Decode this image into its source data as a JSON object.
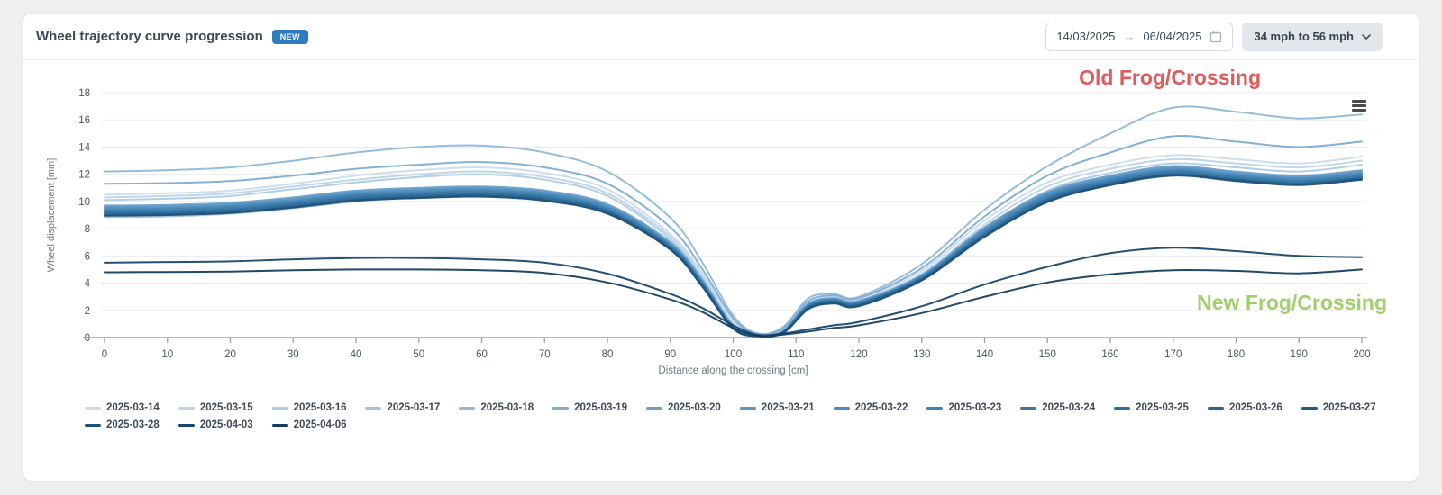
{
  "header": {
    "title": "Wheel trajectory curve progression",
    "badge": "NEW",
    "badge_color": "#2d7dbe",
    "date_range": {
      "start": "14/03/2025",
      "arrow": "→",
      "end": "06/04/2025"
    },
    "speed_filter": "34 mph to 56 mph"
  },
  "chart_data": {
    "type": "line",
    "title": "",
    "xlabel": "Distance along the crossing [cm]",
    "ylabel": "Wheel displacement [mm]",
    "xlim": [
      0,
      200
    ],
    "ylim": [
      0,
      18
    ],
    "x_ticks": [
      0,
      10,
      20,
      30,
      40,
      50,
      60,
      70,
      80,
      90,
      100,
      110,
      120,
      130,
      140,
      150,
      160,
      170,
      180,
      190,
      200
    ],
    "y_ticks": [
      0,
      2,
      4,
      6,
      8,
      10,
      12,
      14,
      16,
      18
    ],
    "grid": "horizontal",
    "legend_position": "bottom",
    "x": [
      0,
      10,
      20,
      30,
      40,
      50,
      60,
      70,
      80,
      90,
      95,
      100,
      104,
      108,
      112,
      116,
      120,
      130,
      140,
      150,
      160,
      170,
      180,
      190,
      200
    ],
    "series": [
      {
        "name": "2025-03-14",
        "color": "#cadcee",
        "values": [
          10.5,
          10.6,
          10.8,
          11.3,
          11.9,
          12.3,
          12.5,
          12.1,
          10.9,
          7.6,
          4.8,
          1.2,
          0.2,
          0.6,
          2.6,
          3.0,
          2.8,
          4.9,
          8.6,
          11.4,
          12.7,
          13.4,
          13.1,
          12.8,
          13.3
        ]
      },
      {
        "name": "2025-03-15",
        "color": "#bcd4e9",
        "values": [
          10.3,
          10.4,
          10.6,
          11.1,
          11.6,
          12.0,
          12.2,
          11.8,
          10.6,
          7.4,
          4.6,
          1.0,
          0.15,
          0.5,
          2.5,
          2.9,
          2.7,
          4.7,
          8.3,
          11.1,
          12.4,
          13.1,
          12.8,
          12.5,
          13.0
        ]
      },
      {
        "name": "2025-03-16",
        "color": "#aecbe4",
        "values": [
          10.1,
          10.2,
          10.4,
          10.9,
          11.4,
          11.8,
          12.0,
          11.6,
          10.4,
          7.2,
          4.4,
          0.9,
          0.1,
          0.45,
          2.4,
          2.8,
          2.6,
          4.5,
          8.0,
          10.8,
          12.1,
          12.8,
          12.5,
          12.2,
          12.7
        ]
      },
      {
        "name": "2025-03-17",
        "color": "#a0c3df",
        "values": [
          8.85,
          8.9,
          9.1,
          9.5,
          10.0,
          10.3,
          10.5,
          10.2,
          9.2,
          6.6,
          4.0,
          0.8,
          0.1,
          0.4,
          2.2,
          2.6,
          2.4,
          4.2,
          7.5,
          10.0,
          11.2,
          11.9,
          11.6,
          11.3,
          11.8
        ]
      },
      {
        "name": "2025-03-18",
        "color": "#8fb8d9",
        "values": [
          12.2,
          12.3,
          12.5,
          13.0,
          13.6,
          14.0,
          14.1,
          13.6,
          12.2,
          8.8,
          5.6,
          1.6,
          0.3,
          0.8,
          2.9,
          3.2,
          3.0,
          5.4,
          9.4,
          12.6,
          15.0,
          16.9,
          16.6,
          16.1,
          16.4
        ]
      },
      {
        "name": "2025-03-19",
        "color": "#7dadd3",
        "values": [
          11.3,
          11.35,
          11.5,
          11.9,
          12.4,
          12.7,
          12.9,
          12.5,
          11.3,
          8.1,
          5.1,
          1.4,
          0.25,
          0.7,
          2.7,
          3.1,
          2.9,
          5.1,
          8.9,
          11.9,
          13.6,
          14.8,
          14.4,
          14.0,
          14.4
        ]
      },
      {
        "name": "2025-03-20",
        "color": "#6ba2cc",
        "values": [
          9.7,
          9.75,
          9.9,
          10.3,
          10.8,
          11.0,
          11.1,
          10.8,
          9.8,
          7.0,
          4.3,
          0.9,
          0.12,
          0.5,
          2.5,
          2.9,
          2.7,
          4.6,
          8.1,
          10.7,
          11.9,
          12.6,
          12.2,
          11.9,
          12.3
        ]
      },
      {
        "name": "2025-03-21",
        "color": "#5b97c5",
        "values": [
          9.6,
          9.65,
          9.8,
          10.2,
          10.7,
          10.9,
          11.0,
          10.7,
          9.7,
          6.9,
          4.2,
          0.85,
          0.1,
          0.48,
          2.45,
          2.85,
          2.65,
          4.55,
          8.0,
          10.6,
          11.8,
          12.5,
          12.1,
          11.8,
          12.2
        ]
      },
      {
        "name": "2025-03-22",
        "color": "#4d8cbd",
        "values": [
          9.5,
          9.55,
          9.7,
          10.1,
          10.6,
          10.8,
          10.9,
          10.6,
          9.6,
          6.8,
          4.1,
          0.8,
          0.1,
          0.45,
          2.4,
          2.8,
          2.6,
          4.5,
          7.9,
          10.5,
          11.7,
          12.4,
          12.0,
          11.7,
          12.1
        ]
      },
      {
        "name": "2025-03-23",
        "color": "#4182b3",
        "values": [
          9.4,
          9.45,
          9.6,
          10.0,
          10.5,
          10.7,
          10.8,
          10.5,
          9.5,
          6.75,
          4.05,
          0.78,
          0.1,
          0.44,
          2.35,
          2.75,
          2.55,
          4.45,
          7.8,
          10.4,
          11.6,
          12.3,
          11.9,
          11.6,
          12.0
        ]
      },
      {
        "name": "2025-03-24",
        "color": "#3778a8",
        "values": [
          9.3,
          9.35,
          9.5,
          9.9,
          10.4,
          10.6,
          10.7,
          10.4,
          9.4,
          6.7,
          4.0,
          0.75,
          0.1,
          0.42,
          2.3,
          2.7,
          2.5,
          4.4,
          7.7,
          10.3,
          11.5,
          12.2,
          11.8,
          11.5,
          11.9
        ]
      },
      {
        "name": "2025-03-25",
        "color": "#2f6e9d",
        "values": [
          9.2,
          9.25,
          9.4,
          9.8,
          10.3,
          10.5,
          10.6,
          10.3,
          9.3,
          6.6,
          3.95,
          0.72,
          0.1,
          0.4,
          2.25,
          2.65,
          2.45,
          4.35,
          7.6,
          10.2,
          11.4,
          12.1,
          11.7,
          11.4,
          11.8
        ]
      },
      {
        "name": "2025-03-26",
        "color": "#286492",
        "values": [
          9.1,
          9.15,
          9.3,
          9.7,
          10.2,
          10.4,
          10.5,
          10.2,
          9.25,
          6.55,
          3.9,
          0.7,
          0.1,
          0.38,
          2.2,
          2.6,
          2.4,
          4.3,
          7.5,
          10.1,
          11.3,
          12.0,
          11.6,
          11.3,
          11.7
        ]
      },
      {
        "name": "2025-03-27",
        "color": "#225a86",
        "values": [
          9.0,
          9.05,
          9.2,
          9.6,
          10.1,
          10.3,
          10.4,
          10.1,
          9.15,
          6.5,
          3.85,
          0.68,
          0.1,
          0.36,
          2.15,
          2.55,
          2.35,
          4.25,
          7.45,
          10.0,
          11.25,
          11.95,
          11.55,
          11.25,
          11.65
        ]
      },
      {
        "name": "2025-03-28",
        "color": "#1d517a",
        "values": [
          8.95,
          9.0,
          9.15,
          9.55,
          10.05,
          10.25,
          10.35,
          10.05,
          9.1,
          6.45,
          3.8,
          0.65,
          0.1,
          0.35,
          2.1,
          2.5,
          2.3,
          4.2,
          7.4,
          9.95,
          11.2,
          11.9,
          11.5,
          11.2,
          11.6
        ]
      },
      {
        "name": "2025-04-03",
        "color": "#18476d",
        "values": [
          5.5,
          5.55,
          5.6,
          5.75,
          5.85,
          5.85,
          5.75,
          5.5,
          4.7,
          3.2,
          2.2,
          0.9,
          0.2,
          0.3,
          0.6,
          0.9,
          1.15,
          2.3,
          3.9,
          5.2,
          6.2,
          6.6,
          6.35,
          6.0,
          5.9
        ]
      },
      {
        "name": "2025-04-06",
        "color": "#143e60",
        "values": [
          4.8,
          4.82,
          4.85,
          4.95,
          5.0,
          5.0,
          4.95,
          4.75,
          4.05,
          2.8,
          1.9,
          0.7,
          0.12,
          0.22,
          0.45,
          0.7,
          0.9,
          1.8,
          3.0,
          4.05,
          4.65,
          4.95,
          4.9,
          4.72,
          5.0
        ]
      }
    ],
    "annotations": [
      {
        "text": "Old Frog/Crossing",
        "color": "#e05c5c",
        "position": "top-right"
      },
      {
        "text": "New Frog/Crossing",
        "color": "#a4ce6e",
        "position": "bottom-right"
      }
    ],
    "style": {
      "grid_color": "#e9ecef",
      "axis_color": "#99a1a9",
      "tick_label_color": "#4c565f",
      "axis_title_color": "#707a84",
      "menu_icon": "hamburger-menu"
    }
  }
}
